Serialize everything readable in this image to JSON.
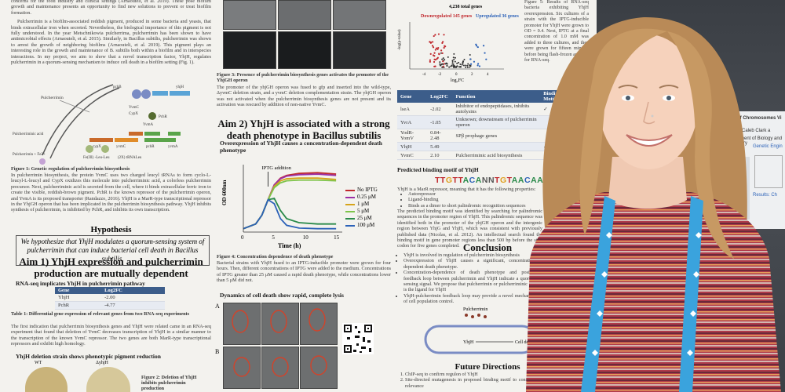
{
  "col1": {
    "intro_text": "concerns for the food industry and clinical settings (Arnaouteli, et al. 2019). These pose biofilm growth and maintenance presents an opportunity to find new solutions to prevent or treat biofilm formation.",
    "pulcherrimin_text": "Pulcherrimin is a biofilm-associated reddish pigment, produced in some bacteria and yeasts, that binds extracellular iron when secreted. Nevertheless, the biological importance of this pigment is not fully understood. In the year Metschnikowia pulcherrima, pulcherrimin has been shown to have antimicrobial effects (Arnaouteli, et al. 2015). Similarly, in Bacillus subtilis, pulcherrimin was shown to arrest the growth of neighboring biofilms (Arnaouteli, et al. 2019). This pigment plays an interesting role in the growth and maintenance of B. subtilis both within a biofilm and in interspecies interactions. In my project, we aim to show that a novel transcription factor, YhjH, regulates pulcherrimin in a quorum-sensing mechanism to induce cell death in a biofilm setting (Fig. 1).",
    "fig1_labels": [
      "Pulcherrimin",
      "YvmC",
      "CypX",
      "PchR",
      "YvmA",
      "pchB",
      "yhjH",
      "cypX",
      "yvmC",
      "pchR",
      "yvmA",
      "Pulcherriminic acid",
      "Pulcherrimin + Fe3+",
      "Fe(III) -Leu-Leu",
      "(2X) tRNALeu"
    ],
    "fig1_caption": "Figure 1: Genetic regulation of pulcherrimin biosynthesis",
    "fig1_text": "In pulcherrimin biosynthesis, the protein YvmC uses two charged leucyl tRNAs to form cyclo-L-leucyl-L-leucyl and CypX oxidizes this molecule into pulcherriminic acid, a colorless pulcherrimin precursor. Next, pulcherriminic acid is secreted from the cell, where it binds extracellular ferric iron to create the visible, reddish-brown pigment. PchR is the known repressor of the pulcherrimin operon, and YvmA is its proposed transporter (Randazzo, 2016). YhjH is a MarR-type transcriptional repressor in the YhjGH operon that has been implicated in the pulcherrimin biosynthesis pathway. YhjH inhibits synthesis of pulcherrimin, is inhibited by PchR, and inhibits its own transcription.",
    "hypothesis_title": "Hypothesis",
    "hypothesis_text": "We hypothesize that YhjH modulates a quorum-sensing system of pulcherrimin that can induce bacterial cell death in Bacillus subtilis.",
    "aim1_title": "Aim 1) YhjH expression and pulcherrimin production are mutually dependent",
    "aim1_subtitle": "RNA-seq implicates YhjH in pulcherrimin pathway",
    "table1": {
      "headers": [
        "Gene",
        "Log2FC"
      ],
      "rows": [
        [
          "YhjH",
          "-2.00"
        ],
        [
          "PchR",
          "-4.77"
        ]
      ]
    },
    "table1_caption": "Table 1: Differential gene expression of relevant genes from two RNA-seq experiments",
    "table1_text": "The first indication that pulcherrimin biosynthesis genes and YhjH were related came in an RNA-seq experiment that found that deletion of YvmC decreases transcription of YhjH in a similar manner to the transcription of the known YvmC repressor. The two genes are both MarR-type transcriptional repressors and exhibit high homology.",
    "deletion_title": "YhjH deletion strain shows phenotypic pigment reduction",
    "plate_labels": [
      "WT",
      "ΔyhjH"
    ],
    "fig2_caption": "Figure 2: Deletion of YhjH inhibits pulcherrimin production",
    "fig2_mini_label": "A"
  },
  "col2": {
    "fig3_caption": "Figure 3: Presence of pulcherrimin biosynthesis genes activates the promoter of the YhjGH operon",
    "fig3_text": "The promoter of the yhjGH operon was fused to gfp and inserted into the wild-type, ΔyvmC deletion strain, and a yvmC deletion complementation strain. The yhjGH operon was not activated when the pulcherrimin biosynthesis genes are not present and its activation was rescued by addition of non-native YvmC.",
    "aim2_title": "Aim 2) YhjH is associated with a strong death phenotype in Bacillus subtilis",
    "aim2_subtitle": "Overexpression of YhjH causes a concentration-dependent death phenotype",
    "fig5_title": "Dynamics of cell death show rapid, complete lysis",
    "fig5_labels": [
      "A",
      "B"
    ],
    "fig4_caption": "Figure 4: Concentration dependence of death phenotype",
    "fig4_text": "Bacterial strains with YhjH fused to an IPTG-inducible promoter were grown for four hours. Then, different concentrations of IPTG were added to the medium. Concentrations of IPTG greater than 25 μM caused a rapid death phenotype, while concentrations lower than 5 μM did not."
  },
  "chart_data": {
    "type": "line",
    "title": "",
    "xlabel": "Time (h)",
    "ylabel": "OD 600nm",
    "xlim": [
      0,
      16
    ],
    "xticks": [
      "0",
      "5",
      "10",
      "15"
    ],
    "annotation": "IPTG addition",
    "annotation_x": 4,
    "series": [
      {
        "name": "No IPTG",
        "color": "#c0282d",
        "x": [
          0,
          2,
          3,
          4,
          5,
          6,
          7,
          9,
          12,
          15
        ],
        "y": [
          0.05,
          0.12,
          0.25,
          0.48,
          0.7,
          0.8,
          0.84,
          0.87,
          0.88,
          0.86
        ]
      },
      {
        "name": "0.25 μM",
        "color": "#9b2fa6",
        "x": [
          0,
          2,
          3,
          4,
          5,
          6,
          7,
          9,
          12,
          15
        ],
        "y": [
          0.05,
          0.12,
          0.25,
          0.48,
          0.7,
          0.79,
          0.83,
          0.85,
          0.86,
          0.84
        ]
      },
      {
        "name": "1 μM",
        "color": "#d6a41a",
        "x": [
          0,
          2,
          3,
          4,
          5,
          6,
          7,
          9,
          12,
          15
        ],
        "y": [
          0.05,
          0.12,
          0.25,
          0.48,
          0.68,
          0.76,
          0.79,
          0.8,
          0.8,
          0.78
        ]
      },
      {
        "name": "5 μM",
        "color": "#7ec44a",
        "x": [
          0,
          2,
          3,
          4,
          5,
          6,
          7,
          9,
          12,
          15
        ],
        "y": [
          0.05,
          0.12,
          0.25,
          0.48,
          0.66,
          0.73,
          0.76,
          0.77,
          0.77,
          0.76
        ]
      },
      {
        "name": "25 μM",
        "color": "#2a8a4a",
        "x": [
          0,
          2,
          3,
          4,
          5,
          6,
          7,
          9,
          12,
          15
        ],
        "y": [
          0.05,
          0.12,
          0.25,
          0.48,
          0.5,
          0.32,
          0.2,
          0.14,
          0.12,
          0.12
        ]
      },
      {
        "name": "100 μM",
        "color": "#2c62b8",
        "x": [
          0,
          2,
          3,
          4,
          5,
          6,
          7,
          9,
          12,
          15
        ],
        "y": [
          0.05,
          0.12,
          0.25,
          0.48,
          0.42,
          0.2,
          0.1,
          0.06,
          0.05,
          0.05
        ]
      }
    ]
  },
  "col3": {
    "volcano_title": "4,238 total genes",
    "volcano_down": "Downregulated 145 genes",
    "volcano_up": "Upregulated 36 genes",
    "volcano_xlabel": "log₂FC",
    "volcano_ylabel": "-log(p-value)",
    "volcano_xticks": [
      "-4",
      "-2",
      "0",
      "2",
      "4"
    ],
    "side_text": "Figure 5: Results of RNA-seq bacteria exhibiting YhjH overexpression. Six cultures of a strain with the IPTG-inducible promoter for YhjH were grown to OD = 0.4. Next, IPTG at a final concentration of 1.0 mM was added to three cultures, and they were grown for fifteen minutes before being flash-frozen and sent for RNA-seq.",
    "table2": {
      "headers": [
        "Gene",
        "Log2FC",
        "Function",
        "Binding Motif?"
      ],
      "rows": [
        [
          "lseA",
          "-2.02",
          "Inhibitor of endopeptidases, inhibits autolysins",
          "✓"
        ],
        [
          "YvrA",
          "-1.05",
          "Unknown; downstream of pulcherrimin operon",
          ""
        ],
        [
          "YodR-YomV",
          "0.84-2.48",
          "SPβ prophage genes",
          ""
        ],
        [
          "YhjH",
          "5.49",
          "",
          "✓"
        ],
        [
          "YvmC",
          "2.10",
          "Pulcherriminic acid biosynthesis",
          "✓"
        ]
      ]
    },
    "motif_title": "Predicted binding motif of YhjH",
    "motif_seq": "TTGTTACANNTGTAACAA",
    "motif_text": "YhjH is a MarR repressor, meaning that it has the following properties:",
    "motif_bullets": [
      "Autorepressor",
      "Ligand-binding",
      "Binds as a dimer to short palindromic recognition sequences"
    ],
    "motif_text2": "The predicted binding motif was identified by searching for palindromic sequences in the promoter region of YhjH. This palindromic sequence was identified both in the promoter of the yhjGH operon and the intergenic region between YhjG and YhjH, which was consistent with previously published data (Nicolas, et al. 2012). An intellectual search found the binding motif in gene promoter regions less than 500 bp before the start codon for five genes completed.",
    "conclusion_title": "Conclusion",
    "conclusion_bullets": [
      "YhjH is involved in regulation of pulcherrimin biosynthesis",
      "Overexpression of YhjH causes a significant, concentration-dependent death phenotype.",
      "Concentration-dependence of death phenotype and positive feedback loop between pulcherrimin and YhjH indicate a quorum-sensing signal. We propose that pulcherrimin or pulcherriminic acid is the ligand for YhjH",
      "YhjH-pulcherrimin feedback loop may provide a novel mechanism of cell population control."
    ],
    "diagram_labels": [
      "Pulcherrimin",
      "YhjH",
      "Cell death"
    ],
    "future_title": "Future Directions",
    "future_items": [
      "ChIP-seq to confirm regulon of YhjH",
      "Site-directed mutagenesis in proposed binding motif to confirm its biological relevance"
    ]
  },
  "background": {
    "side_poster_title": "...rization of Chromosomes Vi",
    "side_poster_author": "Caleb Clark a",
    "side_poster_dept": "Department of Biology and Chemistry",
    "side_poster_result": "Results: Ch",
    "side_poster_label": "Genetic Engin"
  },
  "colors": {
    "table_header": "#3c5d8a",
    "sweater_red": "#b03a4a",
    "lanyard": "#3aa3dd"
  }
}
